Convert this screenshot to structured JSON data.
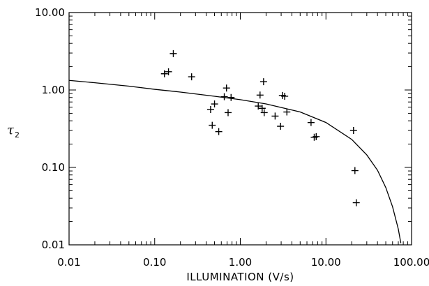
{
  "chart_data": {
    "type": "scatter",
    "xlabel": "ILLUMINATION (V/s)",
    "ylabel": {
      "symbol": "τ",
      "subscript": "2"
    },
    "xscale": "log",
    "yscale": "log",
    "xlim": [
      0.01,
      100
    ],
    "ylim": [
      0.01,
      10
    ],
    "grid": false,
    "x_ticks": [
      {
        "value": 0.01,
        "label": "0.01"
      },
      {
        "value": 0.1,
        "label": "0.10"
      },
      {
        "value": 1,
        "label": "1.00"
      },
      {
        "value": 10,
        "label": "10.00"
      },
      {
        "value": 100,
        "label": "100.00"
      }
    ],
    "y_ticks": [
      {
        "value": 0.01,
        "label": "0.01"
      },
      {
        "value": 0.1,
        "label": "0.10"
      },
      {
        "value": 1,
        "label": "1.00"
      },
      {
        "value": 10,
        "label": "10.00"
      }
    ],
    "series": [
      {
        "kind": "points",
        "marker": "+",
        "points": [
          [
            0.13,
            1.62
          ],
          [
            0.145,
            1.72
          ],
          [
            0.165,
            2.95
          ],
          [
            0.27,
            1.48
          ],
          [
            0.45,
            0.56
          ],
          [
            0.47,
            0.35
          ],
          [
            0.5,
            0.66
          ],
          [
            0.56,
            0.29
          ],
          [
            0.65,
            0.82
          ],
          [
            0.69,
            1.06
          ],
          [
            0.72,
            0.51
          ],
          [
            0.78,
            0.8
          ],
          [
            1.62,
            0.62
          ],
          [
            1.7,
            0.86
          ],
          [
            1.8,
            0.58
          ],
          [
            1.87,
            1.28
          ],
          [
            1.9,
            0.51
          ],
          [
            2.55,
            0.46
          ],
          [
            2.95,
            0.34
          ],
          [
            3.1,
            0.85
          ],
          [
            3.3,
            0.83
          ],
          [
            3.5,
            0.52
          ],
          [
            6.7,
            0.38
          ],
          [
            7.3,
            0.245
          ],
          [
            7.7,
            0.25
          ],
          [
            21.0,
            0.3
          ],
          [
            21.8,
            0.091
          ],
          [
            22.6,
            0.035
          ]
        ]
      },
      {
        "kind": "line",
        "points": [
          [
            0.01,
            1.33
          ],
          [
            0.02,
            1.24
          ],
          [
            0.05,
            1.12
          ],
          [
            0.1,
            1.02
          ],
          [
            0.2,
            0.94
          ],
          [
            0.5,
            0.83
          ],
          [
            1.0,
            0.75
          ],
          [
            2.0,
            0.66
          ],
          [
            5.0,
            0.52
          ],
          [
            10.0,
            0.38
          ],
          [
            20.0,
            0.23
          ],
          [
            30.0,
            0.145
          ],
          [
            40.0,
            0.092
          ],
          [
            50.0,
            0.055
          ],
          [
            60.0,
            0.031
          ],
          [
            70.0,
            0.016
          ],
          [
            75.0,
            0.0105
          ]
        ]
      }
    ]
  }
}
